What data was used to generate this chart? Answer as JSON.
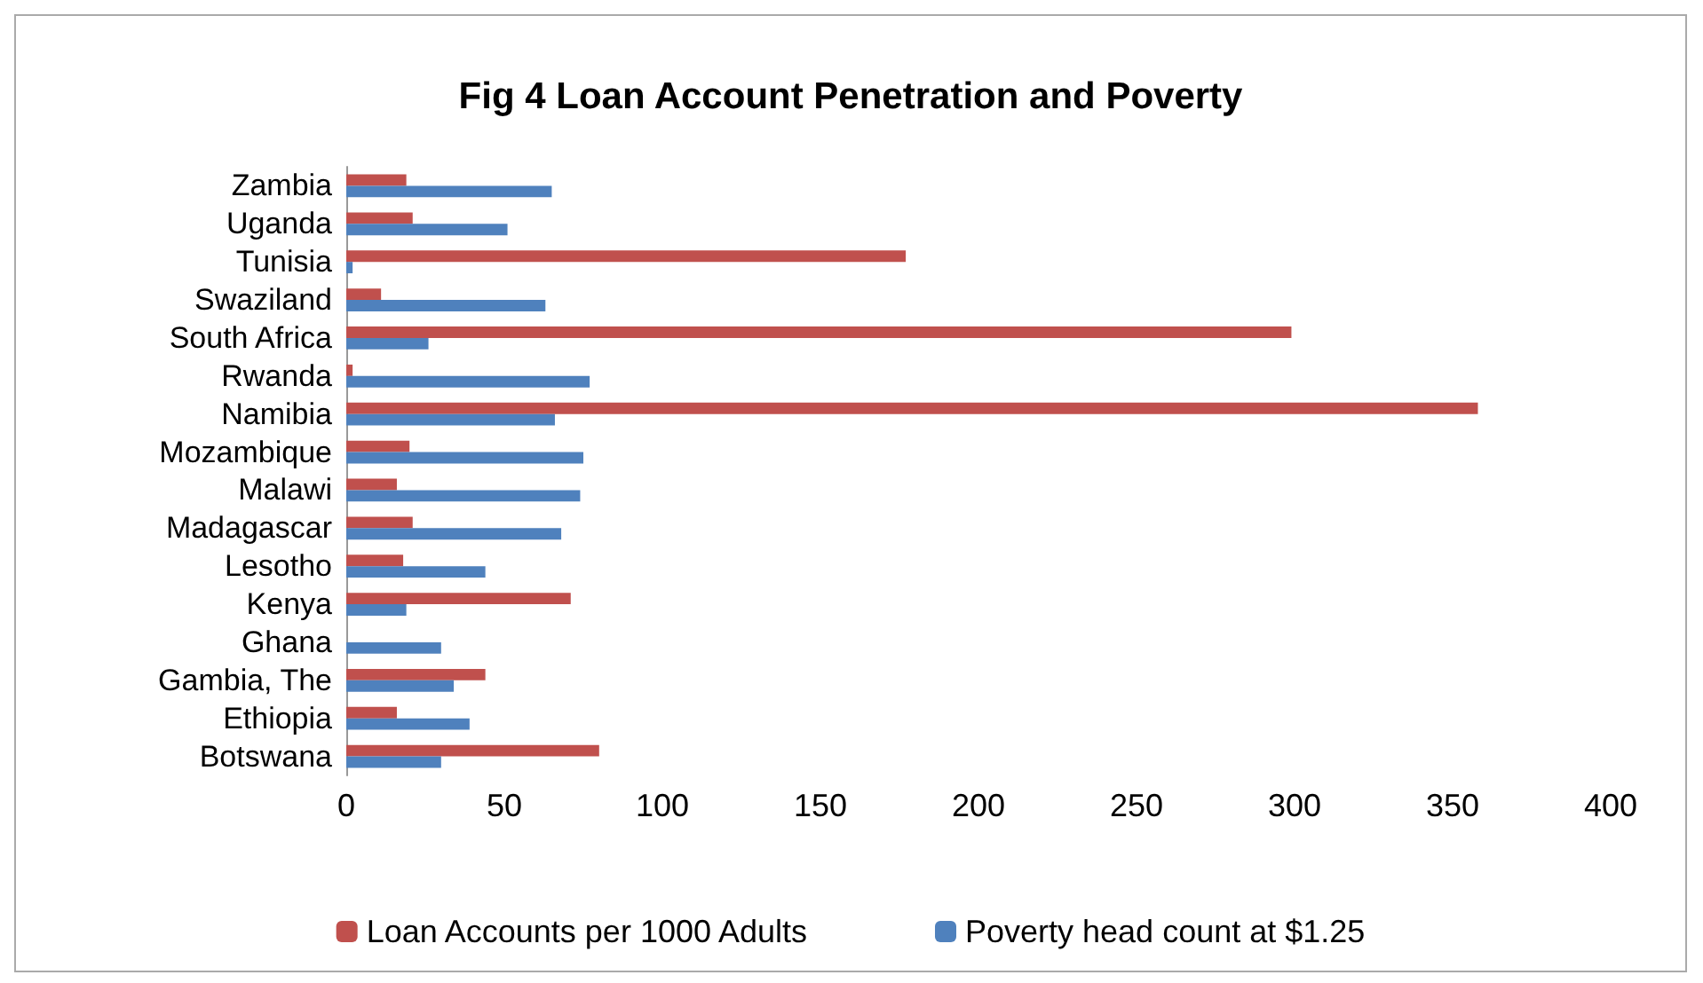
{
  "chart_data": {
    "type": "bar",
    "orientation": "horizontal",
    "title": "Fig 4 Loan Account Penetration and Poverty",
    "categories": [
      "Zambia",
      "Uganda",
      "Tunisia",
      "Swaziland",
      "South Africa",
      "Rwanda",
      "Namibia",
      "Mozambique",
      "Malawi",
      "Madagascar",
      "Lesotho",
      "Kenya",
      "Ghana",
      "Gambia, The",
      "Ethiopia",
      "Botswana"
    ],
    "series": [
      {
        "name": "Loan Accounts per 1000 Adults",
        "color": "#c0504d",
        "values": [
          19,
          21,
          177,
          11,
          299,
          2,
          358,
          20,
          16,
          21,
          18,
          71,
          null,
          44,
          16,
          80
        ]
      },
      {
        "name": "Poverty head count at $1.25",
        "color": "#4f81bd",
        "values": [
          65,
          51,
          2,
          63,
          26,
          77,
          66,
          75,
          74,
          68,
          44,
          19,
          30,
          34,
          39,
          30
        ]
      }
    ],
    "xlim": [
      0,
      400
    ],
    "xticks": [
      0,
      50,
      100,
      150,
      200,
      250,
      300,
      350,
      400
    ],
    "grid": false,
    "legend": "bottom"
  }
}
